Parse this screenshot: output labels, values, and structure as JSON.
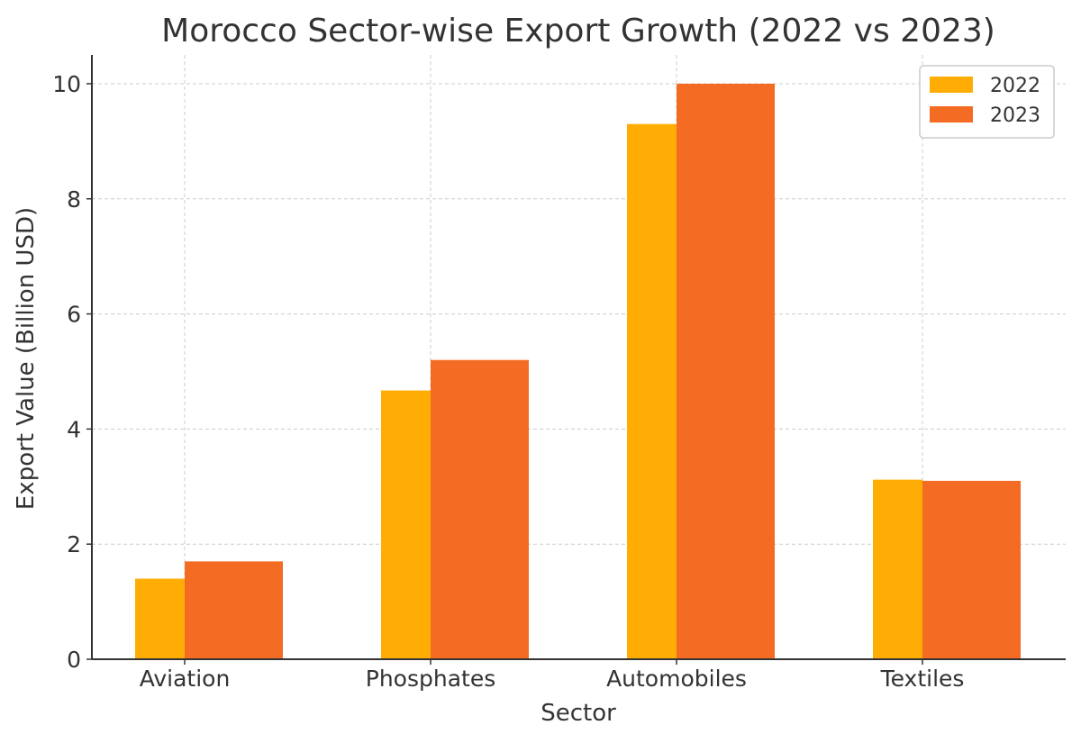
{
  "chart_data": {
    "type": "bar",
    "title": "Morocco Sector-wise Export Growth (2022 vs 2023)",
    "xlabel": "Sector",
    "ylabel": "Export Value (Billion USD)",
    "categories": [
      "Aviation",
      "Phosphates",
      "Automobiles",
      "Textiles"
    ],
    "series": [
      {
        "name": "2022",
        "color": "#FFAD05",
        "values": [
          1.4,
          4.67,
          9.3,
          3.12
        ]
      },
      {
        "name": "2023",
        "color": "#F46B23",
        "values": [
          1.7,
          5.2,
          10.0,
          3.1
        ]
      }
    ],
    "ylim": [
      0,
      10.5
    ],
    "yticks": [
      0,
      2,
      4,
      6,
      8,
      10
    ],
    "ytick_labels": [
      "0",
      "2",
      "4",
      "6",
      "8",
      "10"
    ],
    "grid": true,
    "legend_position": "top-right"
  }
}
